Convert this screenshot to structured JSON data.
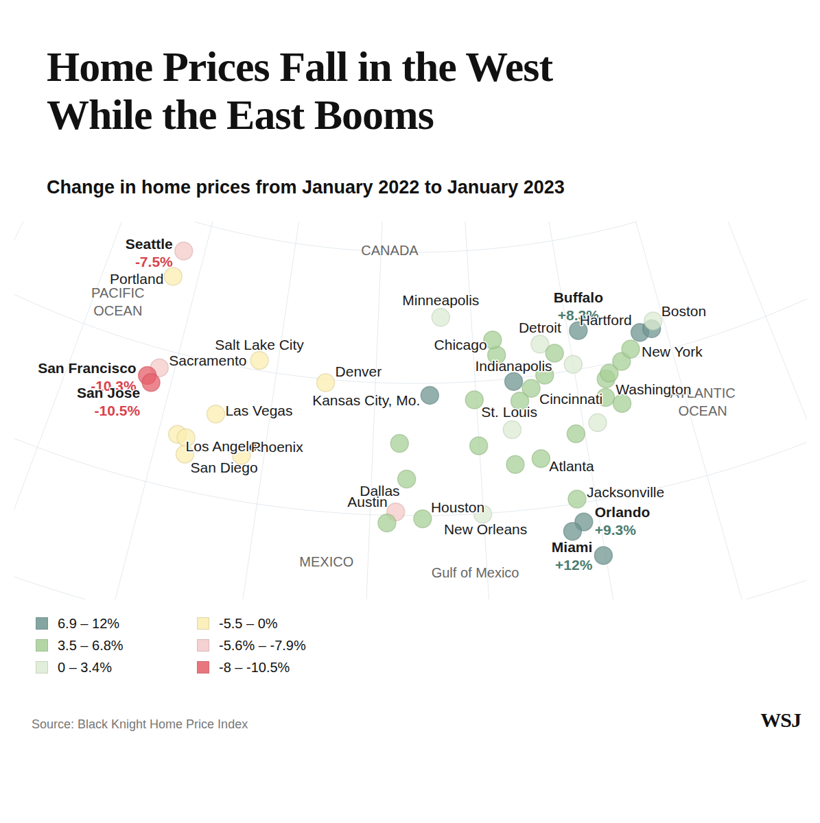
{
  "chart_data": {
    "type": "map",
    "title": "Home Prices Fall in the West While the East Booms",
    "subtitle": "Change in home prices from January 2022 to January 2023",
    "source": "Source: Black Knight Home Price Index",
    "logo": "WSJ",
    "color_bins": [
      {
        "label": "6.9 – 12%",
        "low": 6.9,
        "high": 12,
        "color": "#6f9691"
      },
      {
        "label": "3.5 – 6.8%",
        "low": 3.5,
        "high": 6.8,
        "color": "#a8d097"
      },
      {
        "label": "0 – 3.4%",
        "low": 0,
        "high": 3.4,
        "color": "#dcecd3"
      },
      {
        "label": "-5.5 – 0%",
        "low": -5.5,
        "high": 0,
        "color": "#fbedb0"
      },
      {
        "label": "-5.6% – -7.9%",
        "low": -7.9,
        "high": -5.6,
        "color": "#f5c9c9"
      },
      {
        "label": "-8 – -10.5%",
        "low": -10.5,
        "high": -8,
        "color": "#e55f69"
      }
    ],
    "regions": [
      {
        "text": "CANADA",
        "lon": -99,
        "lat": 50.2
      },
      {
        "text": "PACIFIC\nOCEAN",
        "lon": -127.5,
        "lat": 42.5
      },
      {
        "text": "ATLANTIC\nOCEAN",
        "lon": -68.5,
        "lat": 35.5
      },
      {
        "text": "MEXICO",
        "lon": -103.5,
        "lat": 26.3
      },
      {
        "text": "Gulf of Mexico",
        "lon": -91,
        "lat": 25.6
      }
    ],
    "points": [
      {
        "name": "Seattle",
        "lon": -122.33,
        "lat": 47.61,
        "value": -7.5,
        "label": "-7.5%"
      },
      {
        "name": "Portland",
        "lon": -122.68,
        "lat": 45.52,
        "value": -3,
        "label": null
      },
      {
        "name": "Sacramento",
        "lon": -121.49,
        "lat": 38.58,
        "value": -6.5,
        "label": null
      },
      {
        "name": "San Francisco",
        "lon": -122.42,
        "lat": 37.77,
        "value": -10.3,
        "label": "-10.3%"
      },
      {
        "name": "San Jose",
        "lon": -121.89,
        "lat": 37.34,
        "value": -10.5,
        "label": "-10.5%"
      },
      {
        "name": "Los Angeles",
        "lon": -118.24,
        "lat": 34.05,
        "value": -2.5,
        "label": null
      },
      {
        "name": null,
        "lon": -117.4,
        "lat": 33.95,
        "value": -3.5,
        "label": null
      },
      {
        "name": "San Diego",
        "lon": -117.16,
        "lat": 32.72,
        "value": -1.5,
        "label": null
      },
      {
        "name": "Las Vegas",
        "lon": -115.14,
        "lat": 36.17,
        "value": -4,
        "label": null
      },
      {
        "name": "Phoenix",
        "lon": -112.07,
        "lat": 33.45,
        "value": -4.5,
        "label": null
      },
      {
        "name": "Salt Lake City",
        "lon": -111.89,
        "lat": 40.76,
        "value": -3,
        "label": null
      },
      {
        "name": "Denver",
        "lon": -104.99,
        "lat": 39.74,
        "value": -2,
        "label": null
      },
      {
        "name": "Minneapolis",
        "lon": -93.27,
        "lat": 44.98,
        "value": 2,
        "label": null
      },
      {
        "name": "Kansas City, Mo.",
        "lon": -94.58,
        "lat": 39.1,
        "value": 7.2,
        "label": null
      },
      {
        "name": "St. Louis",
        "lon": -90.2,
        "lat": 38.63,
        "value": 5,
        "label": null
      },
      {
        "name": null,
        "lon": -97.5,
        "lat": 35.47,
        "value": 5,
        "label": null
      },
      {
        "name": "Dallas",
        "lon": -96.8,
        "lat": 32.78,
        "value": 4.5,
        "label": null
      },
      {
        "name": "Austin",
        "lon": -97.74,
        "lat": 30.27,
        "value": -6,
        "label": null
      },
      {
        "name": null,
        "lon": -98.49,
        "lat": 29.42,
        "value": 4,
        "label": null
      },
      {
        "name": "Houston",
        "lon": -95.37,
        "lat": 29.76,
        "value": 5,
        "label": null
      },
      {
        "name": "New Orleans",
        "lon": -90.07,
        "lat": 29.95,
        "value": 1.5,
        "label": null
      },
      {
        "name": null,
        "lon": -90.05,
        "lat": 35.15,
        "value": 4.5,
        "label": null
      },
      {
        "name": null,
        "lon": -86.78,
        "lat": 36.16,
        "value": 2.5,
        "label": null
      },
      {
        "name": null,
        "lon": -86.8,
        "lat": 33.52,
        "value": 5,
        "label": null
      },
      {
        "name": "Atlanta",
        "lon": -84.39,
        "lat": 33.75,
        "value": 5.5,
        "label": null
      },
      {
        "name": "Jacksonville",
        "lon": -81.66,
        "lat": 30.33,
        "value": 6,
        "label": null
      },
      {
        "name": "Orlando",
        "lon": -81.38,
        "lat": 28.54,
        "value": 9.3,
        "label": "+9.3%"
      },
      {
        "name": null,
        "lon": -82.46,
        "lat": 27.95,
        "value": 9,
        "label": null
      },
      {
        "name": "Miami",
        "lon": -80.19,
        "lat": 25.76,
        "value": 12,
        "label": "+12%"
      },
      {
        "name": "Chicago",
        "lon": -87.63,
        "lat": 41.88,
        "value": 5.5,
        "label": null
      },
      {
        "name": null,
        "lon": -87.91,
        "lat": 43.04,
        "value": 5.5,
        "label": null
      },
      {
        "name": "Indianapolis",
        "lon": -86.16,
        "lat": 39.77,
        "value": 7.5,
        "label": null
      },
      {
        "name": "Cincinnati",
        "lon": -84.51,
        "lat": 39.1,
        "value": 6,
        "label": null
      },
      {
        "name": null,
        "lon": -85.76,
        "lat": 38.25,
        "value": 5,
        "label": null
      },
      {
        "name": null,
        "lon": -83.0,
        "lat": 39.96,
        "value": 5.5,
        "label": null
      },
      {
        "name": "Detroit",
        "lon": -83.05,
        "lat": 42.33,
        "value": 3,
        "label": null
      },
      {
        "name": null,
        "lon": -81.69,
        "lat": 41.5,
        "value": 5,
        "label": null
      },
      {
        "name": null,
        "lon": -80.0,
        "lat": 40.44,
        "value": 2.5,
        "label": null
      },
      {
        "name": "Buffalo",
        "lon": -78.88,
        "lat": 42.89,
        "value": 8.3,
        "label": "+8.3%"
      },
      {
        "name": null,
        "lon": -80.84,
        "lat": 35.23,
        "value": 5.5,
        "label": null
      },
      {
        "name": null,
        "lon": -78.64,
        "lat": 35.78,
        "value": 3,
        "label": null
      },
      {
        "name": null,
        "lon": -77.44,
        "lat": 37.54,
        "value": 4.5,
        "label": null
      },
      {
        "name": null,
        "lon": -76.0,
        "lat": 36.85,
        "value": 5,
        "label": null
      },
      {
        "name": "Washington",
        "lon": -77.04,
        "lat": 38.9,
        "value": 4,
        "label": null
      },
      {
        "name": null,
        "lon": -76.61,
        "lat": 39.29,
        "value": 4,
        "label": null
      },
      {
        "name": null,
        "lon": -75.17,
        "lat": 39.95,
        "value": 5,
        "label": null
      },
      {
        "name": "New York",
        "lon": -74.0,
        "lat": 40.71,
        "value": 5,
        "label": null
      },
      {
        "name": "Hartford",
        "lon": -72.68,
        "lat": 41.76,
        "value": 7.5,
        "label": null
      },
      {
        "name": null,
        "lon": -71.41,
        "lat": 41.82,
        "value": 7,
        "label": null
      },
      {
        "name": "Boston",
        "lon": -71.06,
        "lat": 42.36,
        "value": 3,
        "label": null
      }
    ]
  }
}
